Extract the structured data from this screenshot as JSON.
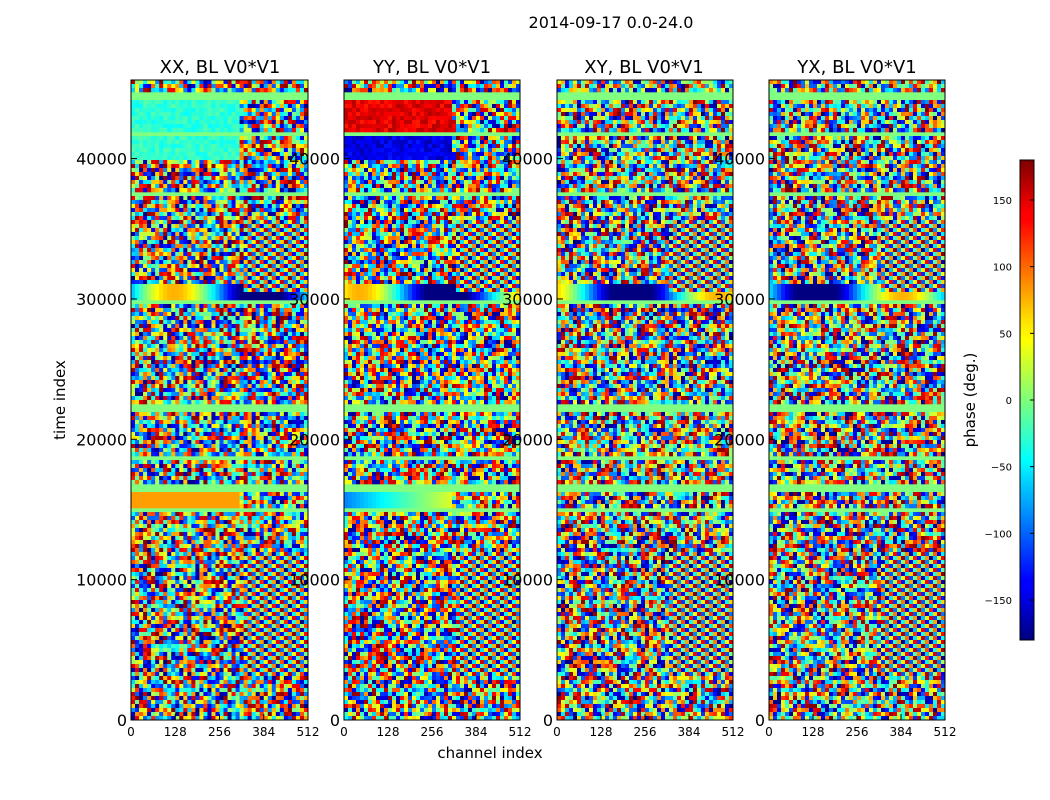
{
  "chart_data": {
    "type": "heatmap",
    "suptitle": "2014-09-17 0.0-24.0",
    "xlabel": "channel index",
    "ylabel": "time index",
    "xlim": [
      0,
      512
    ],
    "ylim": [
      0,
      45600
    ],
    "x_ticks": [
      0,
      128,
      256,
      384,
      512
    ],
    "x_tick_labels": [
      "0",
      "128",
      "256",
      "384",
      "512"
    ],
    "y_ticks": [
      0,
      10000,
      20000,
      30000,
      40000
    ],
    "y_tick_labels": [
      "0",
      "10000",
      "20000",
      "30000",
      "40000"
    ],
    "panels": [
      {
        "title": "XX, BL V0*V1"
      },
      {
        "title": "YY, BL V0*V1"
      },
      {
        "title": "XY, BL V0*V1"
      },
      {
        "title": "YX, BL V0*V1"
      }
    ],
    "colorbar": {
      "label": "phase (deg.)",
      "range": [
        -180,
        180
      ],
      "colormap": "jet",
      "ticks": [
        -150,
        -100,
        -50,
        0,
        50,
        100,
        150
      ],
      "tick_labels": [
        "−150",
        "−100",
        "−50",
        "0",
        "50",
        "100",
        "150"
      ]
    },
    "flagged_bands": [
      [
        14700,
        15200
      ],
      [
        16300,
        16800
      ],
      [
        18600,
        18900
      ],
      [
        21900,
        22500
      ],
      [
        29600,
        30000
      ],
      [
        37200,
        37600
      ],
      [
        41500,
        41800
      ],
      [
        44300,
        44800
      ]
    ]
  }
}
